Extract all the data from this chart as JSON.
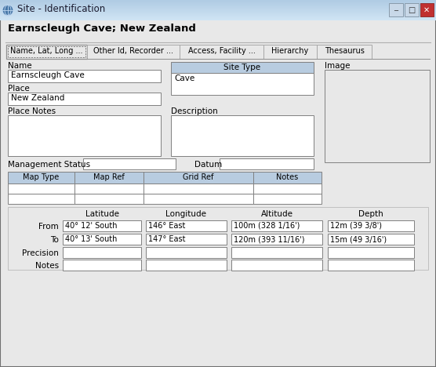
{
  "title": "Site - Identification",
  "subtitle": "Earnscleugh Cave; New Zealand",
  "tabs": [
    "Name, Lat, Long ...",
    "Other Id, Recorder ...",
    "Access, Facility ...",
    "Hierarchy",
    "Thesaurus"
  ],
  "active_tab": 0,
  "name_label": "Name",
  "name_value": "Earnscleugh Cave",
  "place_label": "Place",
  "place_value": "New Zealand",
  "place_notes_label": "Place Notes",
  "description_label": "Description",
  "site_type_label": "Site Type",
  "site_type_value": "Cave",
  "image_label": "Image",
  "mgmt_status_label": "Management Status",
  "datum_label": "Datum",
  "map_headers": [
    "Map Type",
    "Map Ref",
    "Grid Ref",
    "Notes"
  ],
  "coord_row_labels": [
    "From",
    "To",
    "Precision",
    "Notes"
  ],
  "coord_col_headers": [
    "Latitude",
    "Longitude",
    "Altitude",
    "Depth"
  ],
  "from_values": [
    "40° 12' South",
    "146° East",
    "100m (328 1/16')",
    "12m (39 3/8')"
  ],
  "to_values": [
    "40° 13' South",
    "147° East",
    "120m (393 11/16')",
    "15m (49 3/16')"
  ],
  "bg_color": "#e8e8e8",
  "title_bar_start": "#a8c4e0",
  "title_bar_end": "#c8ddf0",
  "tab_active_bg": "#e8e8e8",
  "tab_inactive_bg": "#e8e8e8",
  "field_bg": "#ffffff",
  "header_bg": "#b8cce0",
  "border_color": "#808080",
  "text_color": "#000000",
  "close_btn_color": "#c03030"
}
